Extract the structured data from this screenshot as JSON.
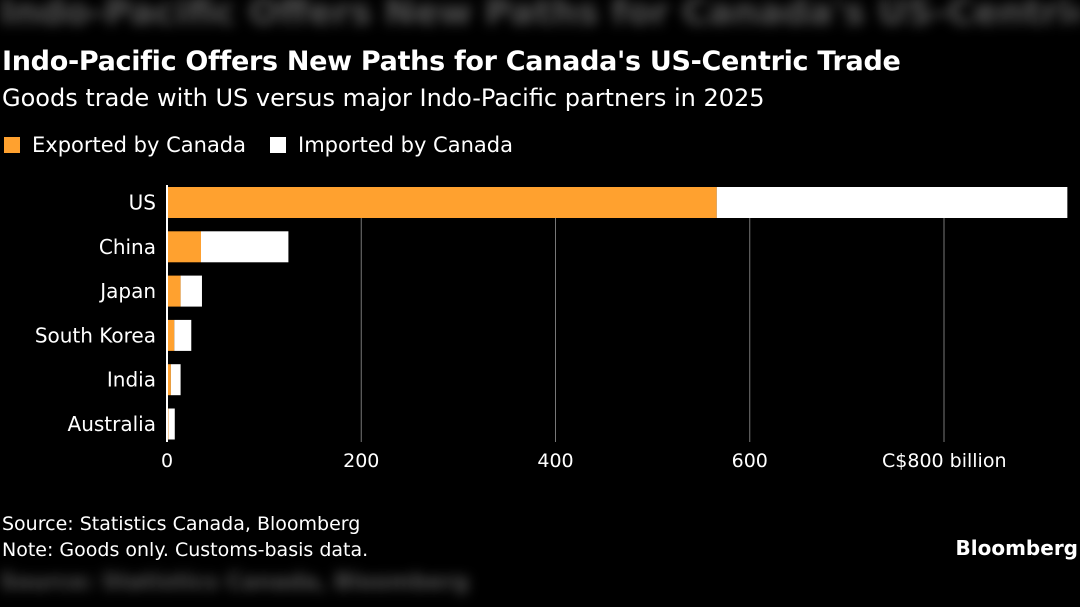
{
  "chart_data": {
    "type": "bar",
    "orientation": "horizontal",
    "stacked": true,
    "title": "Indo-Pacific Offers New Paths for Canada's US-Centric Trade",
    "subtitle": "Goods trade with US versus major Indo-Pacific partners in 2025",
    "categories": [
      "US",
      "China",
      "Japan",
      "South Korea",
      "India",
      "Australia"
    ],
    "series": [
      {
        "name": "Exported by Canada",
        "color": "#ffa12f",
        "values": [
          566,
          35,
          14,
          7.5,
          4,
          1.5
        ]
      },
      {
        "name": "Imported by Canada",
        "color": "#ffffff",
        "values": [
          361,
          90,
          22,
          17.5,
          10,
          6.5
        ]
      }
    ],
    "xlim": [
      0,
      930
    ],
    "xticks": [
      0,
      200,
      400,
      600,
      800
    ],
    "xtick_labels": [
      "0",
      "200",
      "400",
      "600",
      "C$800 billion"
    ],
    "grid": true,
    "legend": "top-left"
  },
  "footer": {
    "source": "Source: Statistics Canada, Bloomberg",
    "note": "Note: Goods only. Customs-basis data.",
    "brand": "Bloomberg"
  }
}
